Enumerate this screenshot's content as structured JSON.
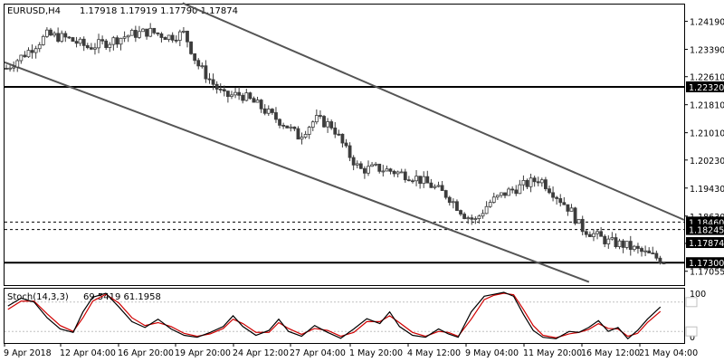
{
  "chart_data": {
    "type": "candlestick",
    "symbol": "EURUSD,H4",
    "ohlc_label": "1.17918 1.17919 1.17790 1.17874",
    "price_axis": {
      "range": [
        1.1666,
        1.2467
      ],
      "ticks": [
        "1.24190",
        "1.23390",
        "1.22610",
        "1.21810",
        "1.21010",
        "1.20230",
        "1.19430",
        "1.18630",
        "1.17850",
        "1.17055"
      ]
    },
    "time_axis": {
      "ticks": [
        "9 Apr 2018",
        "12 Apr 04:00",
        "16 Apr 20:00",
        "19 Apr 20:00",
        "24 Apr 12:00",
        "27 Apr 04:00",
        "1 May 20:00",
        "4 May 12:00",
        "9 May 04:00",
        "11 May 20:00",
        "16 May 12:00",
        "21 May 04:00"
      ]
    },
    "horizontal_levels": [
      {
        "price": 1.2232,
        "label": "1.22320",
        "style": "solid"
      },
      {
        "price": 1.1846,
        "label": "1.18460",
        "style": "dashed"
      },
      {
        "price": 1.18245,
        "label": "1.18245",
        "style": "dashed"
      },
      {
        "price": 1.173,
        "label": "1.17300",
        "style": "solid"
      }
    ],
    "current_price": {
      "price": 1.17874,
      "label": "1.17874"
    },
    "trend_channel": {
      "upper": {
        "from": {
          "bar": 0.262,
          "price": 1.2471
        },
        "to": {
          "bar": 1.0,
          "price": 1.1852
        }
      },
      "lower": {
        "from": {
          "bar": 0.0,
          "price": 1.2302
        },
        "to": {
          "bar": 0.86,
          "price": 1.1675
        }
      }
    },
    "close_path": [
      [
        0.0,
        1.2285
      ],
      [
        0.03,
        1.233
      ],
      [
        0.06,
        1.238
      ],
      [
        0.09,
        1.237
      ],
      [
        0.12,
        1.2345
      ],
      [
        0.15,
        1.236
      ],
      [
        0.18,
        1.238
      ],
      [
        0.21,
        1.239
      ],
      [
        0.24,
        1.2375
      ],
      [
        0.262,
        1.2385
      ],
      [
        0.28,
        1.23
      ],
      [
        0.3,
        1.225
      ],
      [
        0.32,
        1.2205
      ],
      [
        0.345,
        1.221
      ],
      [
        0.37,
        1.218
      ],
      [
        0.39,
        1.215
      ],
      [
        0.41,
        1.2125
      ],
      [
        0.43,
        1.209
      ],
      [
        0.455,
        1.214
      ],
      [
        0.48,
        1.212
      ],
      [
        0.5,
        1.205
      ],
      [
        0.52,
        1.1995
      ],
      [
        0.545,
        1.2
      ],
      [
        0.57,
        1.199
      ],
      [
        0.6,
        1.1975
      ],
      [
        0.625,
        1.195
      ],
      [
        0.65,
        1.192
      ],
      [
        0.675,
        1.1865
      ],
      [
        0.69,
        1.185
      ],
      [
        0.71,
        1.19
      ],
      [
        0.735,
        1.193
      ],
      [
        0.76,
        1.195
      ],
      [
        0.785,
        1.197
      ],
      [
        0.81,
        1.192
      ],
      [
        0.83,
        1.188
      ],
      [
        0.845,
        1.183
      ],
      [
        0.865,
        1.181
      ],
      [
        0.885,
        1.179
      ],
      [
        0.91,
        1.178
      ],
      [
        0.935,
        1.176
      ],
      [
        0.955,
        1.1745
      ],
      [
        0.975,
        1.173
      ],
      [
        0.99,
        1.178
      ],
      [
        1.0,
        1.1787
      ]
    ],
    "indicator": {
      "name": "Stoch(14,3,3)",
      "values_label": "69.5419 61.1958",
      "range": [
        0,
        100
      ],
      "levels": [
        20,
        80
      ],
      "scale_labels": [
        "100",
        "0"
      ],
      "main_line": [
        [
          0.0,
          72
        ],
        [
          0.02,
          88
        ],
        [
          0.04,
          80
        ],
        [
          0.06,
          48
        ],
        [
          0.08,
          25
        ],
        [
          0.1,
          18
        ],
        [
          0.115,
          60
        ],
        [
          0.13,
          90
        ],
        [
          0.15,
          98
        ],
        [
          0.17,
          70
        ],
        [
          0.19,
          40
        ],
        [
          0.21,
          28
        ],
        [
          0.23,
          45
        ],
        [
          0.25,
          25
        ],
        [
          0.27,
          12
        ],
        [
          0.29,
          8
        ],
        [
          0.31,
          18
        ],
        [
          0.33,
          30
        ],
        [
          0.345,
          52
        ],
        [
          0.36,
          30
        ],
        [
          0.38,
          12
        ],
        [
          0.4,
          22
        ],
        [
          0.415,
          45
        ],
        [
          0.43,
          20
        ],
        [
          0.45,
          10
        ],
        [
          0.47,
          32
        ],
        [
          0.49,
          18
        ],
        [
          0.51,
          6
        ],
        [
          0.53,
          25
        ],
        [
          0.55,
          46
        ],
        [
          0.57,
          36
        ],
        [
          0.585,
          60
        ],
        [
          0.6,
          30
        ],
        [
          0.62,
          12
        ],
        [
          0.64,
          8
        ],
        [
          0.66,
          25
        ],
        [
          0.675,
          15
        ],
        [
          0.69,
          8
        ],
        [
          0.71,
          60
        ],
        [
          0.73,
          92
        ],
        [
          0.745,
          96
        ],
        [
          0.76,
          100
        ],
        [
          0.775,
          92
        ],
        [
          0.79,
          55
        ],
        [
          0.805,
          22
        ],
        [
          0.82,
          8
        ],
        [
          0.84,
          5
        ],
        [
          0.86,
          20
        ],
        [
          0.875,
          18
        ],
        [
          0.89,
          28
        ],
        [
          0.905,
          42
        ],
        [
          0.92,
          20
        ],
        [
          0.935,
          28
        ],
        [
          0.95,
          5
        ],
        [
          0.965,
          22
        ],
        [
          0.98,
          45
        ],
        [
          1.0,
          70
        ]
      ],
      "signal_line": [
        [
          0.0,
          65
        ],
        [
          0.02,
          82
        ],
        [
          0.04,
          82
        ],
        [
          0.06,
          56
        ],
        [
          0.08,
          32
        ],
        [
          0.1,
          20
        ],
        [
          0.115,
          48
        ],
        [
          0.13,
          82
        ],
        [
          0.15,
          96
        ],
        [
          0.17,
          78
        ],
        [
          0.19,
          48
        ],
        [
          0.21,
          32
        ],
        [
          0.23,
          38
        ],
        [
          0.25,
          30
        ],
        [
          0.27,
          16
        ],
        [
          0.29,
          10
        ],
        [
          0.31,
          15
        ],
        [
          0.33,
          26
        ],
        [
          0.345,
          45
        ],
        [
          0.36,
          36
        ],
        [
          0.38,
          18
        ],
        [
          0.4,
          18
        ],
        [
          0.415,
          38
        ],
        [
          0.43,
          26
        ],
        [
          0.45,
          14
        ],
        [
          0.47,
          26
        ],
        [
          0.49,
          22
        ],
        [
          0.51,
          10
        ],
        [
          0.53,
          18
        ],
        [
          0.55,
          40
        ],
        [
          0.57,
          40
        ],
        [
          0.585,
          52
        ],
        [
          0.6,
          38
        ],
        [
          0.62,
          18
        ],
        [
          0.64,
          10
        ],
        [
          0.66,
          20
        ],
        [
          0.675,
          18
        ],
        [
          0.69,
          10
        ],
        [
          0.71,
          45
        ],
        [
          0.73,
          85
        ],
        [
          0.745,
          94
        ],
        [
          0.76,
          98
        ],
        [
          0.775,
          95
        ],
        [
          0.79,
          65
        ],
        [
          0.805,
          32
        ],
        [
          0.82,
          12
        ],
        [
          0.84,
          7
        ],
        [
          0.86,
          15
        ],
        [
          0.875,
          18
        ],
        [
          0.89,
          24
        ],
        [
          0.905,
          36
        ],
        [
          0.92,
          26
        ],
        [
          0.935,
          25
        ],
        [
          0.95,
          10
        ],
        [
          0.965,
          16
        ],
        [
          0.98,
          38
        ],
        [
          1.0,
          61
        ]
      ]
    }
  },
  "colors": {
    "background": "#ffffff",
    "foreground": "#000000",
    "candle": "#3c3c3c",
    "channel": "#555555",
    "stoch_main": "#000000",
    "stoch_signal": "#d00000",
    "level_marker": "#c0c0c0"
  }
}
